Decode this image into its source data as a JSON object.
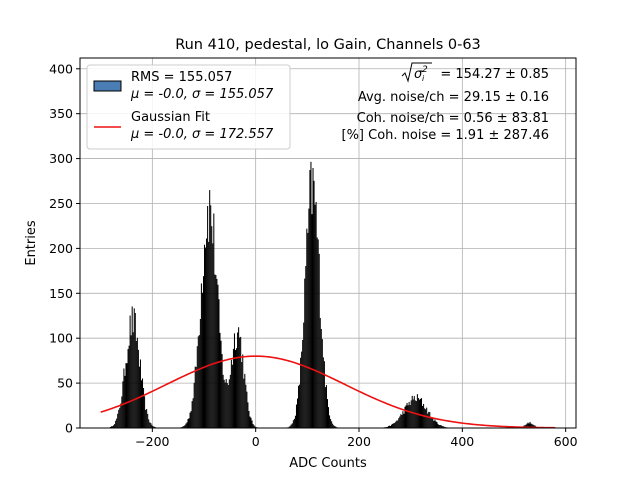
{
  "chart_data": {
    "type": "histogram",
    "title": "Run 410, pedestal, lo Gain, Channels 0-63",
    "xlabel": "ADC Counts",
    "ylabel": "Entries",
    "xlim": [
      -340,
      620
    ],
    "ylim": [
      0,
      412
    ],
    "xticks": [
      -200,
      0,
      200,
      400,
      600
    ],
    "xtick_labels": [
      "−200",
      "0",
      "200",
      "400",
      "600"
    ],
    "yticks": [
      0,
      50,
      100,
      150,
      200,
      250,
      300,
      350,
      400
    ],
    "ytick_labels": [
      "0",
      "50",
      "100",
      "150",
      "200",
      "250",
      "300",
      "350",
      "400"
    ],
    "grid": true,
    "legend_position": "top-left",
    "histogram": {
      "name": "RMS = 155.057",
      "name_line2": "μ = -0.0, σ = 155.057",
      "color": "#000000",
      "legend_color": "#4a7db3",
      "x_range": [
        -300,
        580
      ],
      "peaks": [
        {
          "center": -238,
          "height": 118,
          "sigma": 14
        },
        {
          "center": -90,
          "height": 245,
          "sigma": 16
        },
        {
          "center": -35,
          "height": 108,
          "sigma": 12
        },
        {
          "center": 110,
          "height": 265,
          "sigma": 14
        },
        {
          "center": 310,
          "height": 33,
          "sigma": 22
        },
        {
          "center": 530,
          "height": 6,
          "sigma": 8
        }
      ]
    },
    "fit": {
      "name": "Gaussian Fit",
      "name_line2": "μ = -0.0, σ = 172.557",
      "color": "#ee1111",
      "mu": 0.0,
      "sigma": 172.557,
      "amplitude": 80,
      "x_range": [
        -300,
        580
      ]
    },
    "annotations": {
      "line1_value": " = 154.27 ± 0.85",
      "line2": "Avg. noise/ch = 29.15 ± 0.16",
      "line3": "Coh. noise/ch = 0.56 ± 83.81",
      "line4": "[%] Coh. noise = 1.91 ± 287.46"
    }
  }
}
